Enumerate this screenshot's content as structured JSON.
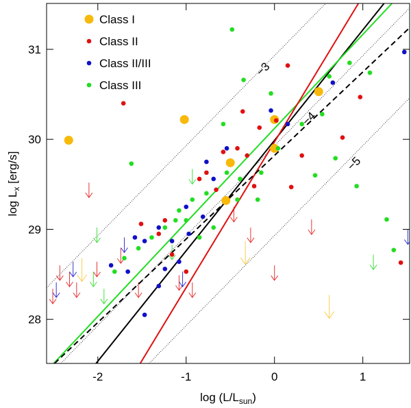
{
  "chart_data": {
    "type": "scatter",
    "xlabel": [
      "log (L/L",
      "sun",
      ")"
    ],
    "ylabel": [
      "log L",
      "x",
      " [erg/s]"
    ],
    "xlim": [
      -2.58,
      1.53
    ],
    "ylim": [
      27.51,
      31.51
    ],
    "xticks": [
      -2,
      -1,
      0,
      1
    ],
    "yticks": [
      28,
      29,
      30,
      31
    ],
    "legend": "upper left",
    "series": [
      {
        "name": "Class I",
        "color": "#f7b90a",
        "size": 6.5,
        "x": [
          -2.33,
          -1.02,
          -0.5,
          -0.55,
          0,
          0,
          0.5
        ],
        "values": [
          29.99,
          30.22,
          29.74,
          29.32,
          30.22,
          29.9,
          30.53
        ],
        "upper_limits": {
          "x": [
            -2.18,
            -0.33,
            0.62
          ],
          "values": [
            28.68,
            28.87,
            28.27
          ]
        }
      },
      {
        "name": "Class II",
        "color": "#e01010",
        "size": 3.3,
        "x": [
          -1.71,
          0.15,
          0.19,
          0.97,
          1.43,
          -0.17,
          -0.36,
          -0.42,
          -0.58,
          -0.77,
          -0.85,
          -1.51,
          -1.31,
          -1.16,
          -1.0,
          -0.66,
          -0.31,
          0.02,
          0.31,
          0.77,
          -0.23,
          -1.24
        ],
        "values": [
          30.4,
          30.82,
          29.47,
          30.47,
          28.63,
          30.13,
          30.31,
          29.9,
          29.86,
          29.63,
          29.56,
          29.06,
          28.95,
          28.72,
          28.53,
          29.44,
          29.82,
          30.21,
          29.82,
          30.02,
          29.48,
          29.1
        ],
        "upper_limits": {
          "x": [
            -2.1,
            -2.43,
            -2.32,
            -2.24,
            -2.01,
            -1.74,
            -1.54,
            -1.08,
            -0.93,
            -0.46,
            -0.27,
            0,
            0.42,
            -2.51
          ],
          "values": [
            29.52,
            28.6,
            28.53,
            28.41,
            28.64,
            28.79,
            28.41,
            28.49,
            28.41,
            29.25,
            29.02,
            28.6,
            29.11,
            28.34
          ]
        }
      },
      {
        "name": "Class II/III",
        "color": "#1010c8",
        "size": 3.3,
        "x": [
          1.47,
          0.66,
          -0.54,
          -0.77,
          -0.69,
          -0.81,
          -0.97,
          -1.16,
          -1.31,
          -1.47,
          -1.58,
          -1.66,
          -1.85,
          -1.47,
          -1.24,
          -1.08,
          -0.04,
          0.15,
          -1.0,
          -1.31
        ],
        "values": [
          30.97,
          30.63,
          29.9,
          29.75,
          29.56,
          29.14,
          28.95,
          28.87,
          29.02,
          28.87,
          28.91,
          28.53,
          28.6,
          28.05,
          28.56,
          28.64,
          30.32,
          30.17,
          29.25,
          28.37
        ],
        "upper_limits": {
          "x": [
            -2.47,
            -2.28,
            -1.7,
            -1.04,
            1.51
          ],
          "values": [
            28.41,
            28.64,
            28.91,
            28.53,
            29.0
          ]
        }
      },
      {
        "name": "Class III",
        "color": "#22dd22",
        "size": 3.3,
        "x": [
          -0.48,
          -0.35,
          -1.62,
          -0.58,
          -0.77,
          -0.93,
          -1.08,
          -1.24,
          -1.39,
          -1.54,
          -1.7,
          -1.81,
          -1.0,
          -0.69,
          -0.54,
          -0.39,
          -0.42,
          -0.19,
          0.04,
          0.31,
          0.54,
          0.62,
          0.85,
          1.08,
          0.69,
          0.93,
          1.27,
          1.35,
          0.46,
          -0.04,
          -0.85,
          -1.12,
          -0.15
        ],
        "values": [
          31.22,
          30.66,
          29.73,
          30.17,
          29.4,
          29.33,
          29.21,
          29.02,
          28.91,
          28.79,
          28.68,
          28.53,
          29.1,
          29.02,
          29.63,
          29.56,
          29.33,
          29.33,
          29.9,
          30.17,
          30.28,
          30.7,
          30.85,
          30.74,
          29.79,
          29.48,
          29.11,
          28.77,
          29.6,
          30.51,
          28.91,
          29.1,
          29.63
        ],
        "upper_limits": {
          "x": [
            -2.05,
            -2.01,
            -1.93,
            -1.16,
            -0.93,
            1.12
          ],
          "values": [
            28.53,
            29.02,
            28.34,
            28.83,
            29.67,
            28.72
          ]
        }
      }
    ],
    "ratio_lines": [
      {
        "label": "−3",
        "x": [
          -2.58,
          0.58
        ],
        "values": [
          28.35,
          31.51
        ],
        "label_at": [
          -0.1,
          30.75
        ]
      },
      {
        "label": "−4",
        "x": [
          -2.42,
          1.53
        ],
        "values": [
          27.51,
          31.46
        ],
        "label_at": [
          0.42,
          30.2
        ]
      },
      {
        "label": "−5",
        "x": [
          -1.42,
          1.53
        ],
        "values": [
          27.51,
          30.46
        ],
        "label_at": [
          0.93,
          29.7
        ]
      }
    ],
    "fits": [
      {
        "color": "#000000",
        "dash": false,
        "x": [
          -2.02,
          1.24
        ],
        "values": [
          27.51,
          31.51
        ]
      },
      {
        "color": "#22dd22",
        "dash": false,
        "x": [
          -2.5,
          1.33
        ],
        "values": [
          27.51,
          31.51
        ]
      },
      {
        "color": "#e01010",
        "dash": false,
        "x": [
          -1.52,
          0.95
        ],
        "values": [
          27.51,
          31.51
        ]
      },
      {
        "color": "#000000",
        "dash": true,
        "x": [
          -2.49,
          1.53
        ],
        "values": [
          27.51,
          31.24
        ]
      }
    ]
  }
}
